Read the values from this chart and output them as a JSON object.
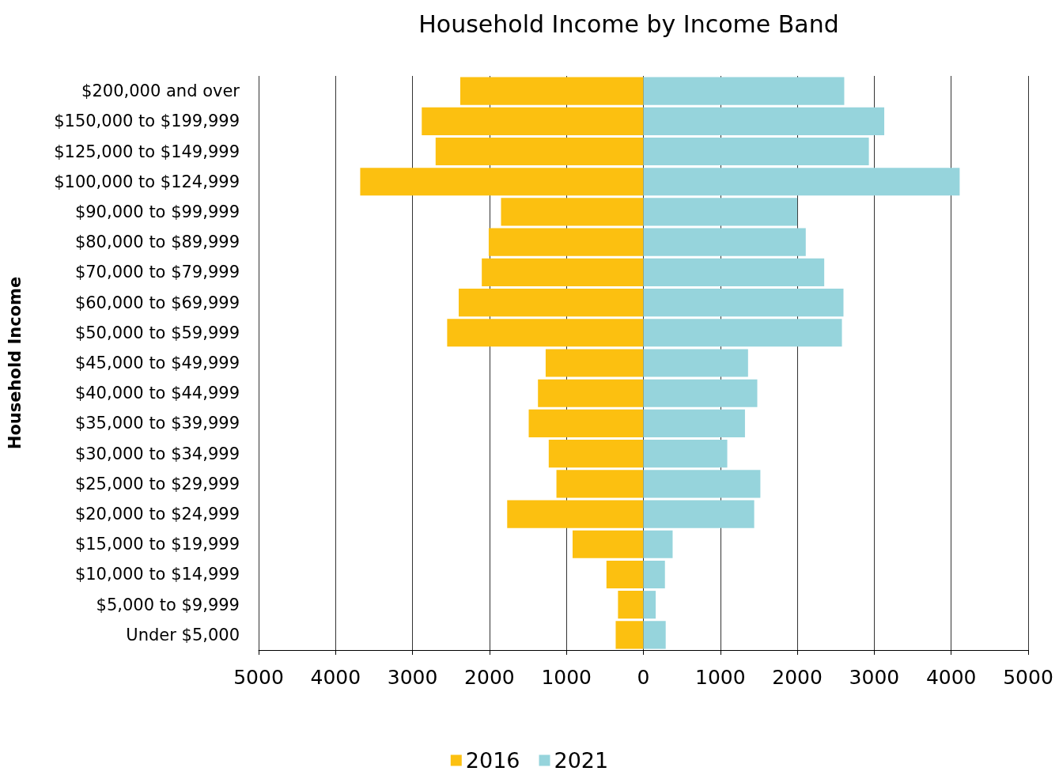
{
  "chart_data": {
    "type": "bar",
    "orientation": "horizontal",
    "title": "Household Income by Income Band",
    "ylabel": "Household Income",
    "categories": [
      "$200,000 and over",
      "$150,000 to $199,999",
      "$125,000 to $149,999",
      "$100,000 to $124,999",
      "$90,000 to $99,999",
      "$80,000 to $89,999",
      "$70,000 to $79,999",
      "$60,000 to $69,999",
      "$50,000 to $59,999",
      "$45,000 to $49,999",
      "$40,000 to $44,999",
      "$35,000 to $39,999",
      "$30,000 to $34,999",
      "$25,000 to $29,999",
      "$20,000 to $24,999",
      "$15,000 to $19,999",
      "$10,000 to $14,999",
      "$5,000 to $9,999",
      "Under $5,000"
    ],
    "series": [
      {
        "name": "2016",
        "color": "#fcc010",
        "values": [
          -2380,
          -2880,
          -2700,
          -3680,
          -1850,
          -2010,
          -2100,
          -2400,
          -2550,
          -1270,
          -1370,
          -1490,
          -1230,
          -1130,
          -1770,
          -920,
          -480,
          -330,
          -360
        ]
      },
      {
        "name": "2021",
        "color": "#96d4dc",
        "values": [
          2610,
          3130,
          2930,
          4110,
          2000,
          2110,
          2350,
          2600,
          2580,
          1360,
          1480,
          1320,
          1090,
          1520,
          1440,
          380,
          280,
          160,
          290
        ]
      }
    ],
    "xlim": [
      -5000,
      5000
    ],
    "xticks": [
      {
        "value": -5000,
        "label": "5000"
      },
      {
        "value": -4000,
        "label": "4000"
      },
      {
        "value": -3000,
        "label": "3000"
      },
      {
        "value": -2000,
        "label": "2000"
      },
      {
        "value": -1000,
        "label": "1000"
      },
      0,
      1000,
      2000,
      3000,
      4000,
      5000
    ],
    "stacked": true,
    "grid": "x",
    "legend": "bottom"
  }
}
